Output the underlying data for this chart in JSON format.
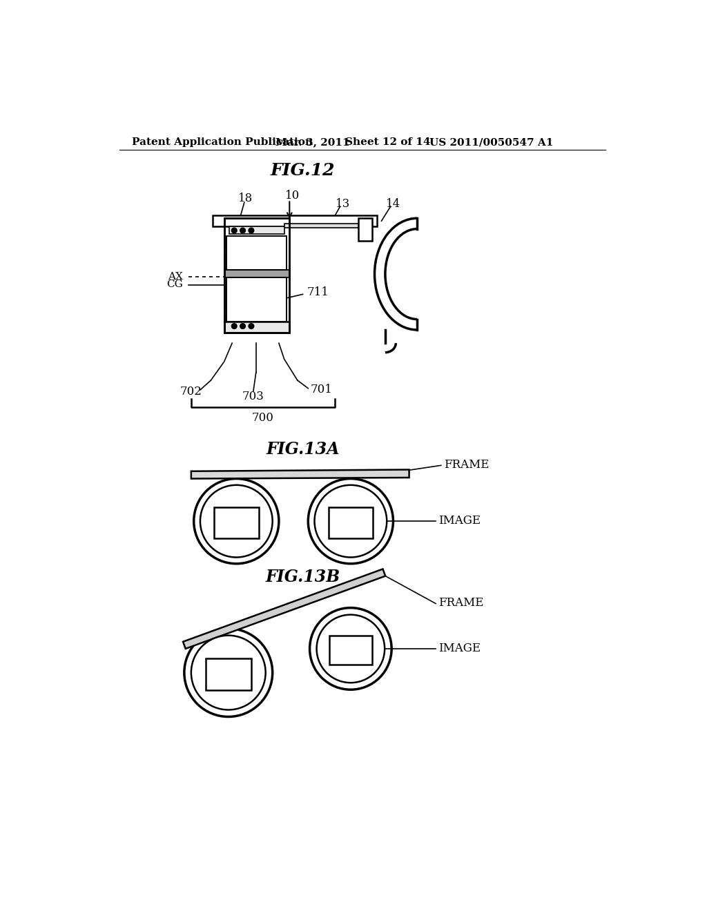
{
  "bg_color": "#ffffff",
  "header_text": "Patent Application Publication",
  "header_date": "Mar. 3, 2011",
  "header_sheet": "Sheet 12 of 14",
  "header_patent": "US 2011/0050547 A1",
  "fig12_title": "FIG.12",
  "fig13a_title": "FIG.13A",
  "fig13b_title": "FIG.13B"
}
